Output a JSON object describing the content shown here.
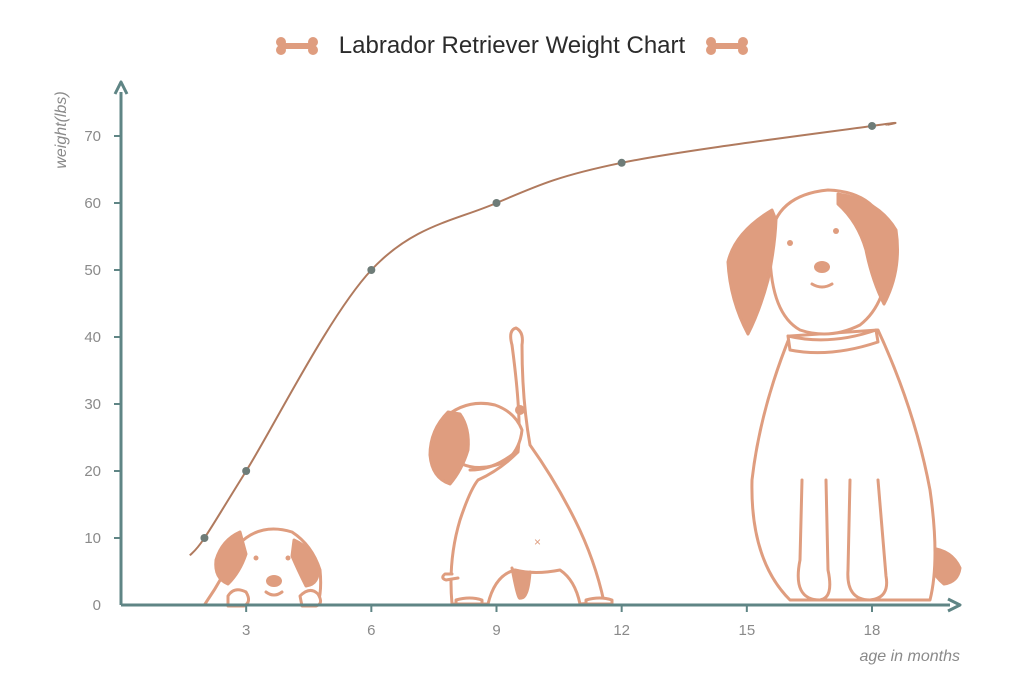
{
  "chart_data": {
    "type": "line",
    "title": "Labrador Retriever Weight Chart",
    "xlabel": "age in months",
    "ylabel": "weight(lbs)",
    "xlim": [
      0,
      19.5
    ],
    "ylim": [
      0,
      77
    ],
    "x_ticks": [
      "3",
      "6",
      "9",
      "12",
      "15",
      "18"
    ],
    "y_ticks": [
      "0",
      "10",
      "20",
      "30",
      "40",
      "50",
      "60",
      "70"
    ],
    "series": [
      {
        "x": [
          2,
          3,
          6,
          9,
          12,
          18
        ],
        "values": [
          10,
          20,
          50,
          60,
          66,
          71.5
        ]
      }
    ],
    "grid": false,
    "colors": {
      "line": "#b07a5e",
      "point": "#6e7c78",
      "axis": "#5f8585",
      "accent": "#df9d7f"
    },
    "icons": [
      "bone-icon",
      "puppy-illustration",
      "young-dog-illustration",
      "adult-dog-illustration"
    ]
  }
}
